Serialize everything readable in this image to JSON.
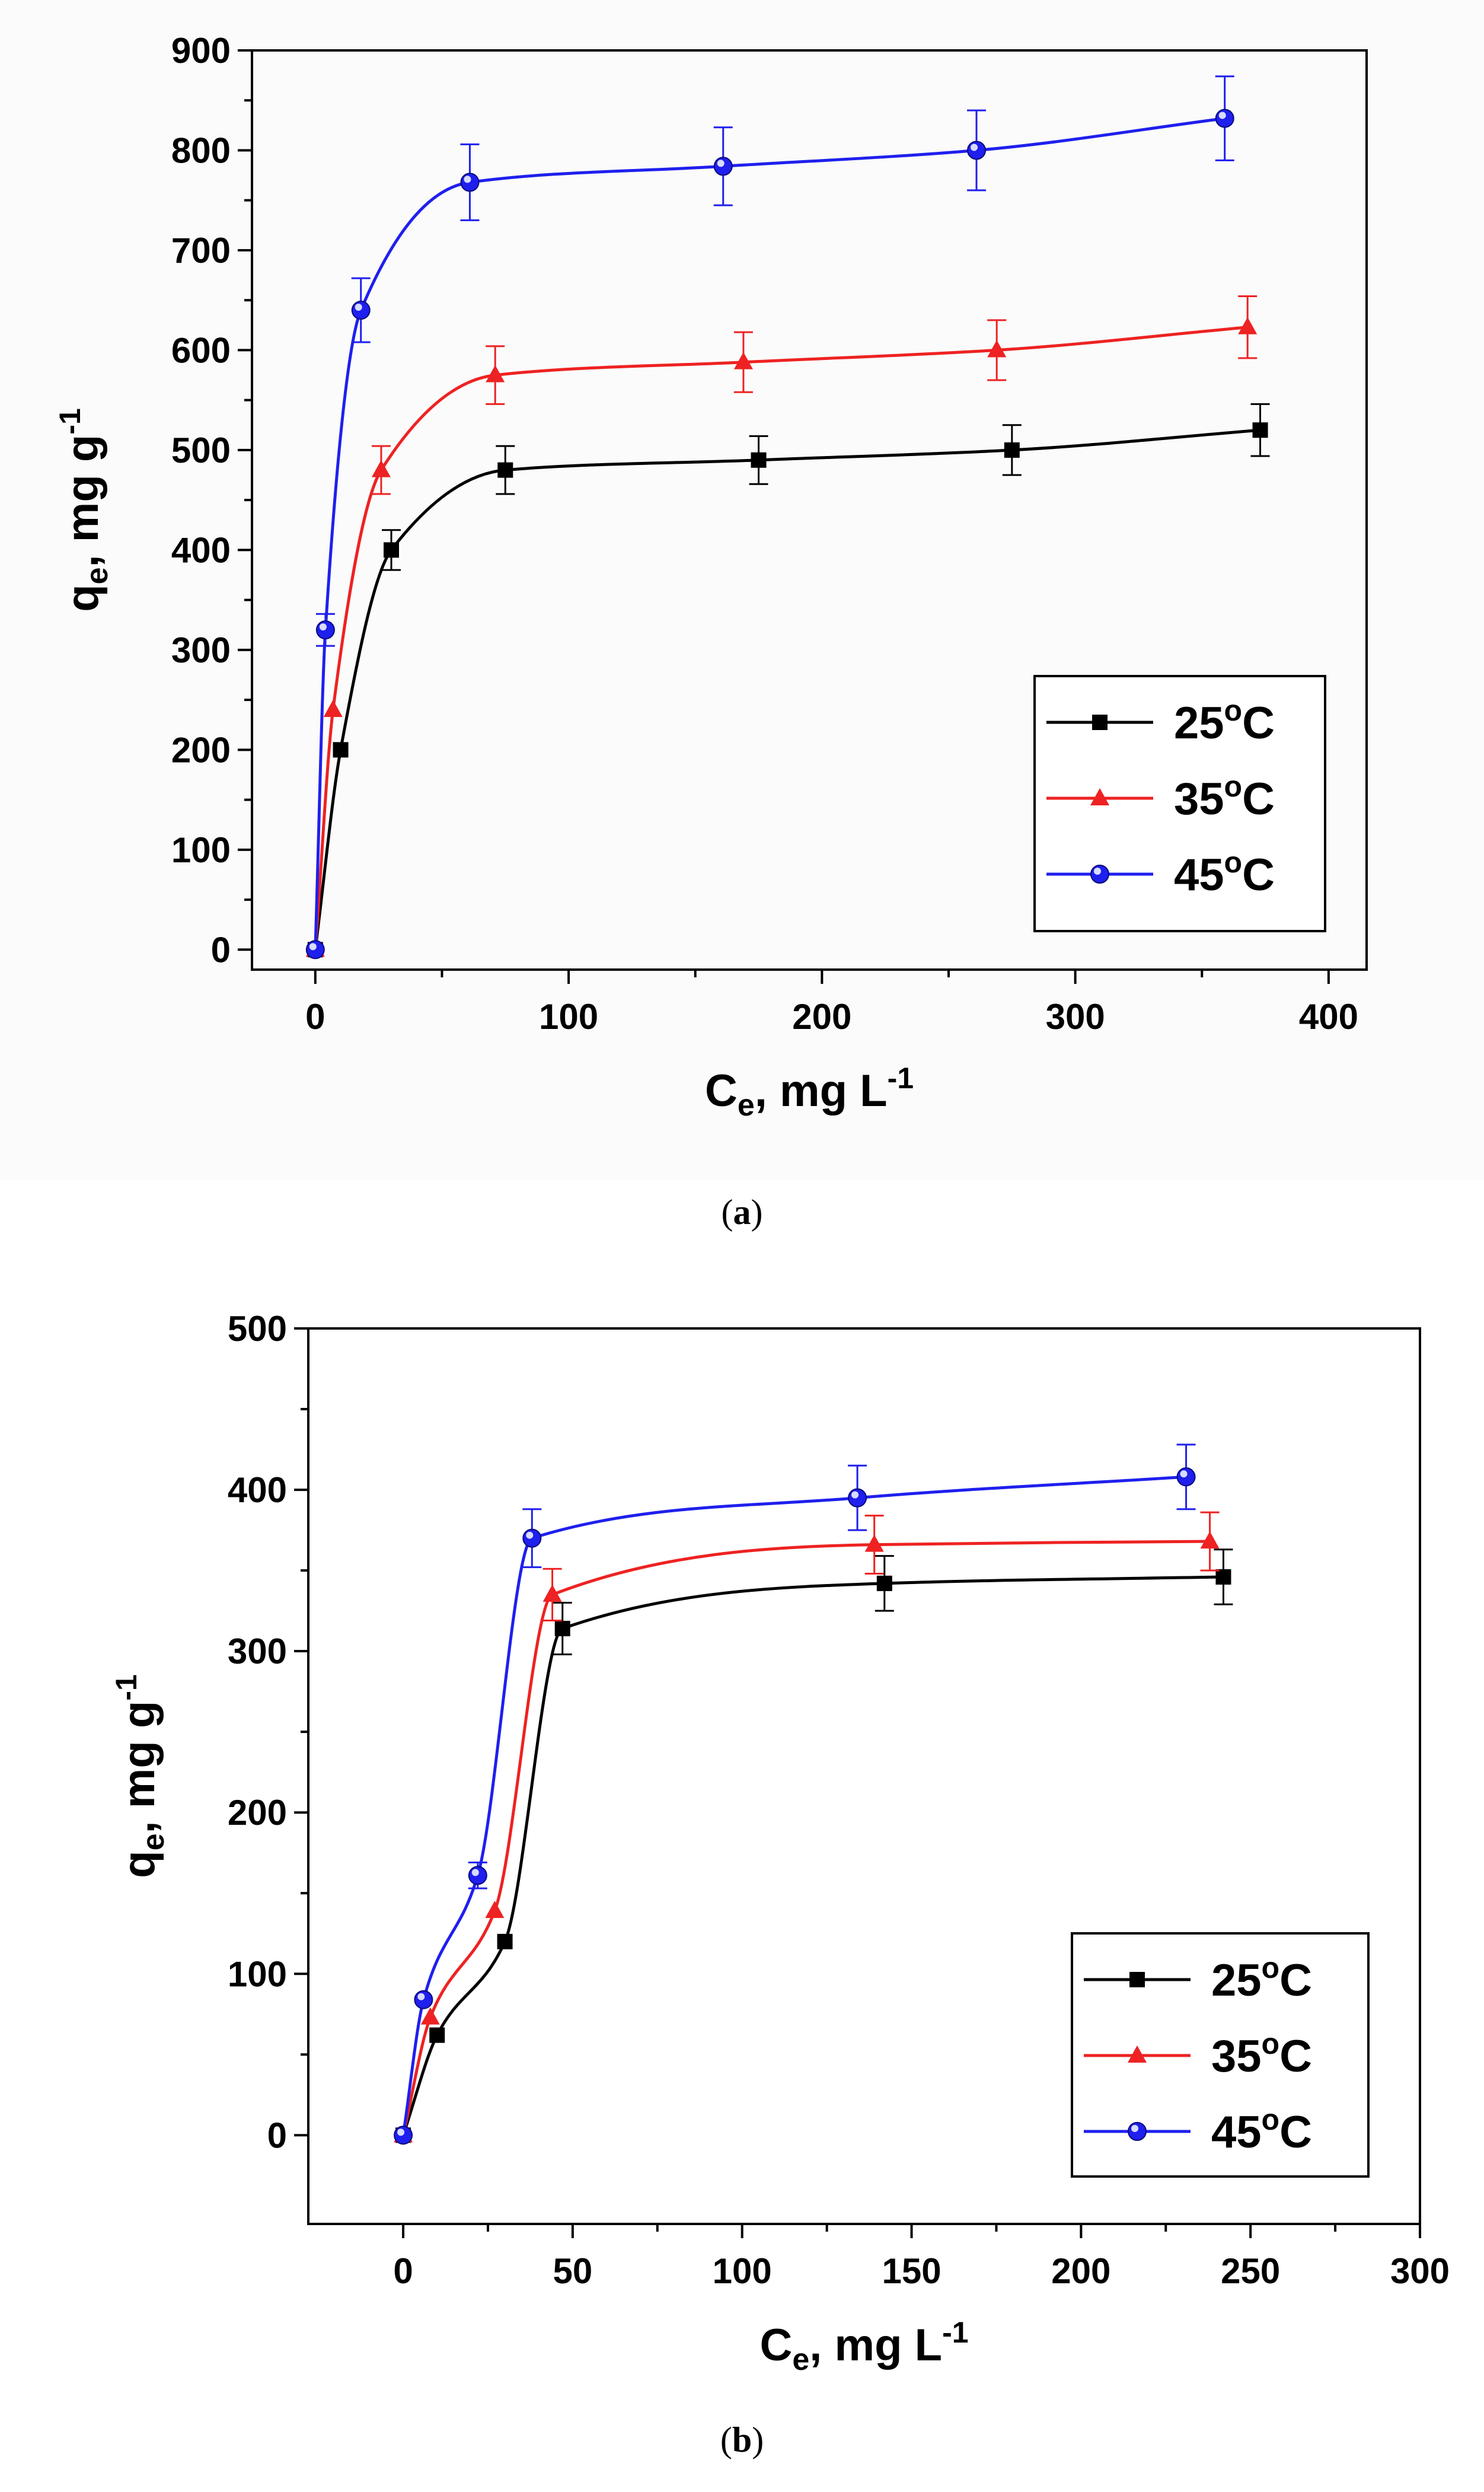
{
  "chart_data": [
    {
      "id": "a",
      "type": "line",
      "caption": {
        "open": "(",
        "letter": "a",
        "close": ")"
      },
      "xlabel": {
        "main": "C",
        "sub": "e",
        "rest": ", mg L",
        "sup": "-1"
      },
      "ylabel": {
        "main": "q",
        "sub": "e",
        "rest": ", mg g",
        "sup": "-1"
      },
      "xlim": [
        -25,
        415
      ],
      "ylim": [
        -20,
        900
      ],
      "xticks": [
        0,
        100,
        200,
        300,
        400
      ],
      "yticks": [
        0,
        100,
        200,
        300,
        400,
        500,
        600,
        700,
        800,
        900
      ],
      "grid": false,
      "legend_position": "bottom-right",
      "series": [
        {
          "name": "25",
          "deg": "o",
          "unit": "C",
          "color": "#000000",
          "marker": "square",
          "x": [
            0,
            10,
            30,
            75,
            175,
            275,
            373
          ],
          "y": [
            0,
            200,
            400,
            480,
            490,
            500,
            520
          ],
          "err": [
            0,
            0,
            20,
            24,
            24,
            25,
            26
          ]
        },
        {
          "name": "35",
          "deg": "o",
          "unit": "C",
          "color": "#ee2222",
          "marker": "triangle",
          "x": [
            0,
            7,
            26,
            71,
            169,
            269,
            368
          ],
          "y": [
            0,
            240,
            480,
            575,
            588,
            600,
            623
          ],
          "err": [
            0,
            0,
            24,
            29,
            30,
            30,
            31
          ]
        },
        {
          "name": "45",
          "deg": "o",
          "unit": "C",
          "color": "#1f1fee",
          "marker": "circle",
          "x": [
            0,
            4,
            18,
            61,
            161,
            261,
            359
          ],
          "y": [
            0,
            320,
            640,
            768,
            784,
            800,
            832
          ],
          "err": [
            0,
            16,
            32,
            38,
            39,
            40,
            42
          ]
        }
      ]
    },
    {
      "id": "b",
      "type": "line",
      "caption": {
        "open": "(",
        "letter": "b",
        "close": ")"
      },
      "xlabel": {
        "main": "C",
        "sub": "e",
        "rest": ", mg L",
        "sup": "-1"
      },
      "ylabel": {
        "main": "q",
        "sub": "e",
        "rest": ", mg g",
        "sup": "-1"
      },
      "xlim": [
        -28,
        300
      ],
      "ylim": [
        -55,
        500
      ],
      "xticks": [
        0,
        50,
        100,
        150,
        200,
        250,
        300
      ],
      "yticks": [
        0,
        100,
        200,
        300,
        400,
        500
      ],
      "grid": false,
      "legend_position": "bottom-right",
      "series": [
        {
          "name": "25",
          "deg": "o",
          "unit": "C",
          "color": "#000000",
          "marker": "square",
          "x": [
            0,
            10,
            30,
            47,
            142,
            242
          ],
          "y": [
            0,
            62,
            120,
            314,
            342,
            346
          ],
          "err": [
            0,
            0,
            0,
            16,
            17,
            17
          ]
        },
        {
          "name": "35",
          "deg": "o",
          "unit": "C",
          "color": "#ee2222",
          "marker": "triangle",
          "x": [
            0,
            8,
            27,
            44,
            139,
            238
          ],
          "y": [
            0,
            73,
            139,
            335,
            366,
            368
          ],
          "err": [
            0,
            0,
            0,
            16,
            18,
            18
          ]
        },
        {
          "name": "45",
          "deg": "o",
          "unit": "C",
          "color": "#1f1fee",
          "marker": "circle",
          "x": [
            0,
            6,
            22,
            38,
            134,
            231
          ],
          "y": [
            0,
            84,
            161,
            370,
            395,
            408
          ],
          "err": [
            0,
            0,
            8,
            18,
            20,
            20
          ]
        }
      ]
    }
  ]
}
